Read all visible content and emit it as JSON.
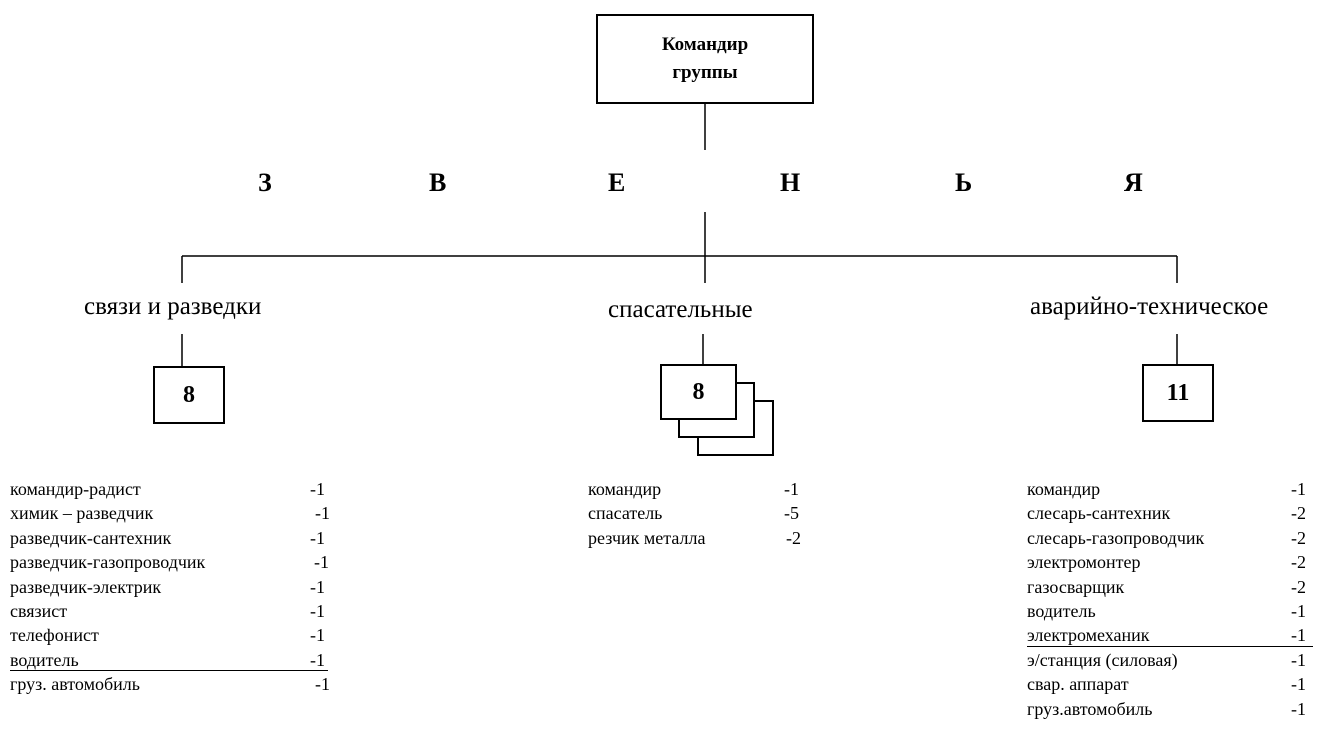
{
  "commander": {
    "line1": "Командир",
    "line2": "группы"
  },
  "header_letters": [
    "З",
    "В",
    "Е",
    "Н",
    "Ь",
    "Я"
  ],
  "branches": [
    {
      "title": "связи и разведки",
      "count": "8",
      "members": [
        {
          "role": "командир-радист",
          "qty": "-1"
        },
        {
          "role": "химик – разведчик",
          "qty": "-1"
        },
        {
          "role": "разведчик-сантехник",
          "qty": "-1"
        },
        {
          "role": "разведчик-газопроводчик",
          "qty": "-1"
        },
        {
          "role": "разведчик-электрик",
          "qty": "-1"
        },
        {
          "role": "связист",
          "qty": "-1"
        },
        {
          "role": "телефонист",
          "qty": "-1"
        },
        {
          "role": "водитель",
          "qty": "-1"
        },
        {
          "role": "груз. автомобиль",
          "qty": "-1"
        }
      ]
    },
    {
      "title": "спасательные",
      "count": "8",
      "members": [
        {
          "role": "командир",
          "qty": "-1"
        },
        {
          "role": "спасатель",
          "qty": "-5"
        },
        {
          "role": "резчик металла",
          "qty": "-2"
        }
      ]
    },
    {
      "title": "аварийно-техническое",
      "count": "11",
      "members": [
        {
          "role": "командир",
          "qty": "-1"
        },
        {
          "role": "слесарь-сантехник",
          "qty": "-2"
        },
        {
          "role": "слесарь-газопроводчик",
          "qty": "-2"
        },
        {
          "role": "электромонтер",
          "qty": "-2"
        },
        {
          "role": "газосварщик",
          "qty": "-2"
        },
        {
          "role": "водитель",
          "qty": "-1"
        },
        {
          "role": "электромеханик",
          "qty": "-1"
        },
        {
          "role": "э/станция (силовая)",
          "qty": "-1"
        },
        {
          "role": "свар. аппарат",
          "qty": "-1"
        },
        {
          "role": "груз.автомобиль",
          "qty": "-1"
        }
      ]
    }
  ]
}
